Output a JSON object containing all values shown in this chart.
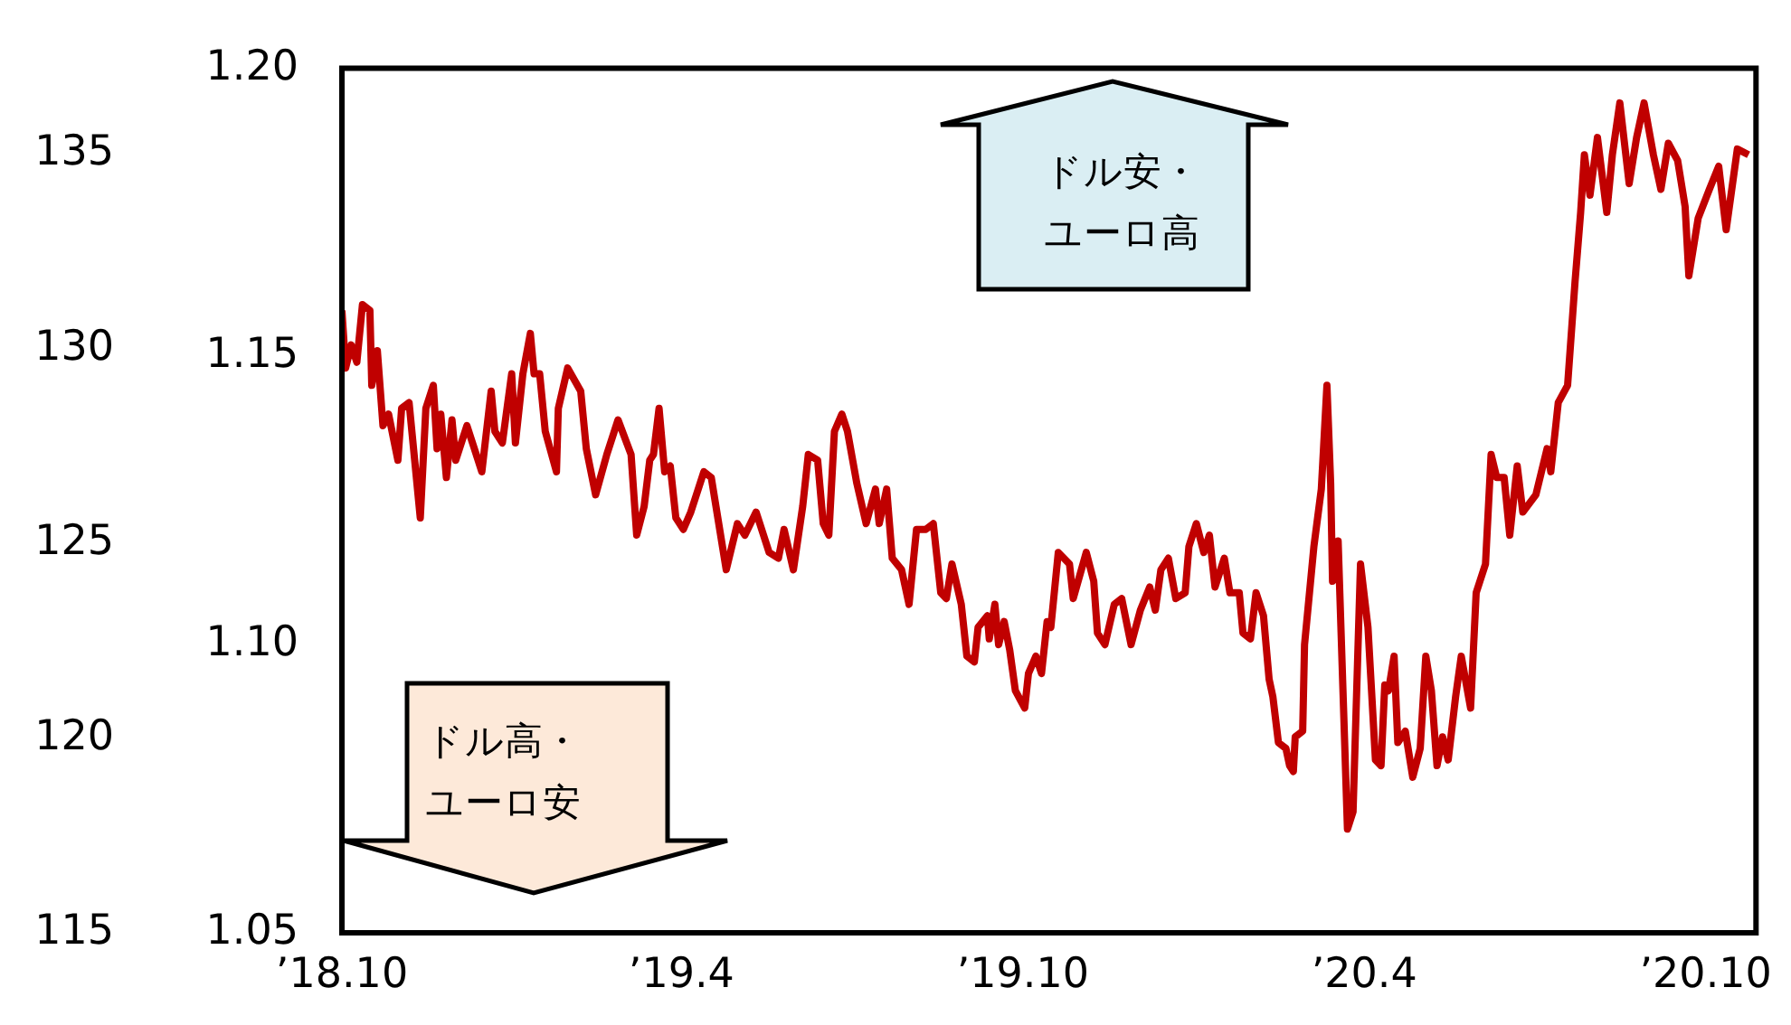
{
  "chart_data": {
    "type": "line",
    "x": [
      "2018-10-01",
      "2018-10-03",
      "2018-10-06",
      "2018-10-09",
      "2018-10-12",
      "2018-10-16",
      "2018-10-17",
      "2018-10-20",
      "2018-10-23",
      "2018-10-26",
      "2018-10-31",
      "2018-11-02",
      "2018-11-06",
      "2018-11-12",
      "2018-11-15",
      "2018-11-19",
      "2018-11-21",
      "2018-11-23",
      "2018-11-26",
      "2018-11-29",
      "2018-12-01",
      "2018-12-07",
      "2018-12-15",
      "2018-12-20",
      "2018-12-22",
      "2018-12-26",
      "2018-12-31",
      "2019-01-02",
      "2019-01-06",
      "2019-01-10",
      "2019-01-12",
      "2019-01-15",
      "2019-01-18",
      "2019-01-24",
      "2019-01-25",
      "2019-01-30",
      "2019-02-06",
      "2019-02-09",
      "2019-02-14",
      "2019-02-20",
      "2019-02-26",
      "2019-03-05",
      "2019-03-08",
      "2019-03-12",
      "2019-03-15",
      "2019-03-17",
      "2019-03-20",
      "2019-03-23",
      "2019-03-26",
      "2019-03-29",
      "2019-04-02",
      "2019-04-06",
      "2019-04-13",
      "2019-04-17",
      "2019-04-20",
      "2019-04-25",
      "2019-05-01",
      "2019-05-05",
      "2019-05-11",
      "2019-05-18",
      "2019-05-23",
      "2019-05-26",
      "2019-05-31",
      "2019-06-05",
      "2019-06-08",
      "2019-06-13",
      "2019-06-16",
      "2019-06-19",
      "2019-06-22",
      "2019-06-26",
      "2019-06-29",
      "2019-07-04",
      "2019-07-09",
      "2019-07-14",
      "2019-07-16",
      "2019-07-20",
      "2019-07-23",
      "2019-07-28",
      "2019-08-01",
      "2019-08-05",
      "2019-08-10",
      "2019-08-14",
      "2019-08-18",
      "2019-08-21",
      "2019-08-24",
      "2019-08-29",
      "2019-09-01",
      "2019-09-05",
      "2019-09-07",
      "2019-09-12",
      "2019-09-13",
      "2019-09-16",
      "2019-09-18",
      "2019-09-21",
      "2019-09-24",
      "2019-09-27",
      "2019-10-02",
      "2019-10-04",
      "2019-10-08",
      "2019-10-11",
      "2019-10-14",
      "2019-10-16",
      "2019-10-20",
      "2019-10-26",
      "2019-10-28",
      "2019-11-04",
      "2019-11-08",
      "2019-11-10",
      "2019-11-14",
      "2019-11-19",
      "2019-11-23",
      "2019-11-28",
      "2019-12-03",
      "2019-12-08",
      "2019-12-11",
      "2019-12-14",
      "2019-12-18",
      "2019-12-22",
      "2019-12-27",
      "2019-12-29",
      "2020-01-02",
      "2020-01-06",
      "2020-01-09",
      "2020-01-12",
      "2020-01-17",
      "2020-01-20",
      "2020-01-25",
      "2020-01-27",
      "2020-01-31",
      "2020-02-03",
      "2020-02-07",
      "2020-02-10",
      "2020-02-12",
      "2020-02-15",
      "2020-02-19",
      "2020-02-21",
      "2020-02-23",
      "2020-02-24",
      "2020-02-28",
      "2020-02-29",
      "2020-03-05",
      "2020-03-09",
      "2020-03-12",
      "2020-03-14",
      "2020-03-15",
      "2020-03-18",
      "2020-03-23",
      "2020-03-26",
      "2020-03-30",
      "2020-04-03",
      "2020-04-07",
      "2020-04-10",
      "2020-04-12",
      "2020-04-14",
      "2020-04-17",
      "2020-04-19",
      "2020-04-23",
      "2020-04-27",
      "2020-05-01",
      "2020-05-04",
      "2020-05-07",
      "2020-05-10",
      "2020-05-13",
      "2020-05-16",
      "2020-05-20",
      "2020-05-23",
      "2020-05-28",
      "2020-05-31",
      "2020-06-05",
      "2020-06-08",
      "2020-06-11",
      "2020-06-15",
      "2020-06-18",
      "2020-06-22",
      "2020-06-25",
      "2020-07-02",
      "2020-07-08",
      "2020-07-10",
      "2020-07-14",
      "2020-07-19",
      "2020-07-23",
      "2020-07-26",
      "2020-07-28",
      "2020-07-31",
      "2020-08-04",
      "2020-08-09",
      "2020-08-12",
      "2020-08-16",
      "2020-08-21",
      "2020-08-25",
      "2020-08-29",
      "2020-09-03",
      "2020-09-07",
      "2020-09-11",
      "2020-09-16",
      "2020-09-20",
      "2020-09-22",
      "2020-09-27",
      "2020-10-03",
      "2020-10-08",
      "2020-10-12",
      "2020-10-18",
      "2020-10-24"
    ],
    "series": [
      {
        "color": "#c00000",
        "values": [
          1.158,
          1.148,
          1.152,
          1.149,
          1.159,
          1.158,
          1.145,
          1.151,
          1.138,
          1.14,
          1.132,
          1.141,
          1.142,
          1.122,
          1.141,
          1.145,
          1.134,
          1.14,
          1.129,
          1.139,
          1.132,
          1.138,
          1.13,
          1.144,
          1.137,
          1.135,
          1.147,
          1.135,
          1.147,
          1.154,
          1.147,
          1.147,
          1.137,
          1.13,
          1.141,
          1.148,
          1.144,
          1.134,
          1.126,
          1.133,
          1.139,
          1.133,
          1.119,
          1.124,
          1.132,
          1.133,
          1.141,
          1.13,
          1.131,
          1.122,
          1.12,
          1.123,
          1.13,
          1.129,
          1.123,
          1.113,
          1.121,
          1.119,
          1.123,
          1.116,
          1.115,
          1.12,
          1.113,
          1.124,
          1.133,
          1.132,
          1.121,
          1.119,
          1.137,
          1.14,
          1.137,
          1.128,
          1.121,
          1.127,
          1.121,
          1.127,
          1.115,
          1.113,
          1.107,
          1.12,
          1.12,
          1.121,
          1.109,
          1.108,
          1.114,
          1.107,
          1.098,
          1.097,
          1.103,
          1.105,
          1.101,
          1.107,
          1.1,
          1.104,
          1.099,
          1.092,
          1.089,
          1.095,
          1.098,
          1.095,
          1.104,
          1.103,
          1.116,
          1.114,
          1.108,
          1.116,
          1.111,
          1.102,
          1.1,
          1.107,
          1.108,
          1.1,
          1.106,
          1.11,
          1.106,
          1.113,
          1.115,
          1.108,
          1.109,
          1.117,
          1.121,
          1.116,
          1.119,
          1.11,
          1.115,
          1.109,
          1.109,
          1.102,
          1.101,
          1.109,
          1.105,
          1.094,
          1.091,
          1.083,
          1.082,
          1.079,
          1.078,
          1.084,
          1.085,
          1.1,
          1.117,
          1.127,
          1.145,
          1.128,
          1.111,
          1.118,
          1.068,
          1.071,
          1.114,
          1.103,
          1.08,
          1.079,
          1.093,
          1.092,
          1.098,
          1.083,
          1.085,
          1.077,
          1.082,
          1.098,
          1.092,
          1.079,
          1.084,
          1.08,
          1.091,
          1.098,
          1.089,
          1.109,
          1.114,
          1.133,
          1.129,
          1.129,
          1.119,
          1.131,
          1.123,
          1.126,
          1.134,
          1.13,
          1.142,
          1.145,
          1.163,
          1.175,
          1.185,
          1.178,
          1.188,
          1.175,
          1.185,
          1.194,
          1.18,
          1.188,
          1.194,
          1.185,
          1.179,
          1.187,
          1.184,
          1.176,
          1.164,
          1.174,
          1.179,
          1.183,
          1.172,
          1.186,
          1.185
        ]
      }
    ],
    "xlim": [
      "2018-10-01",
      "2020-10-28"
    ],
    "xticks": [
      {
        "value": "2018-10-01",
        "label": "’18.10"
      },
      {
        "value": "2019-04-01",
        "label": "’19.4"
      },
      {
        "value": "2019-10-01",
        "label": "’19.10"
      },
      {
        "value": "2020-04-01",
        "label": "’20.4"
      },
      {
        "value": "2020-10-01",
        "label": "’20.10"
      }
    ],
    "ylim": [
      1.05,
      1.2
    ],
    "yticks": [
      1.05,
      {
        "value": 1.1,
        "label": "1.10"
      },
      1.15,
      {
        "value": 1.2,
        "label": "1.20"
      }
    ],
    "y2lim": [
      115,
      137.2
    ],
    "y2ticks": [
      115,
      120,
      125,
      130,
      135
    ],
    "annotations": [
      "ドル安・ユーロ高",
      "ドル高・ユーロ安"
    ],
    "grid": false,
    "legend": false,
    "marker": "none",
    "line_style": "solid"
  }
}
